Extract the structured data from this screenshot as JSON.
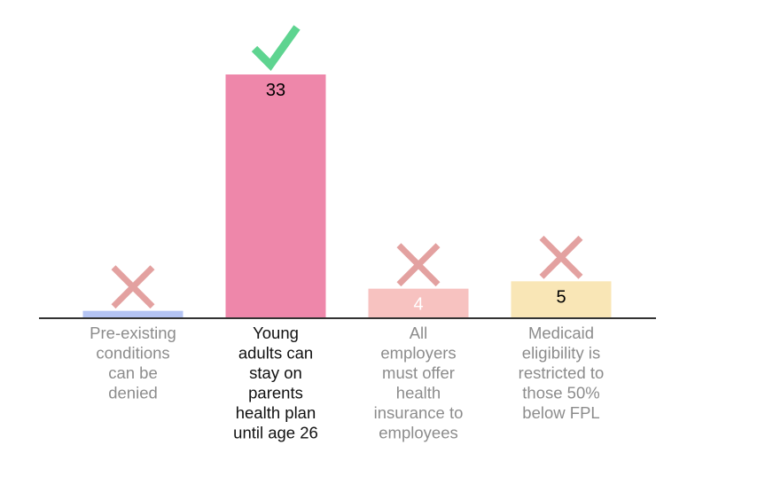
{
  "chart_data": {
    "type": "bar",
    "title": "",
    "xlabel": "",
    "ylabel": "",
    "grid": false,
    "ylim": [
      0,
      33
    ],
    "categories": [
      "Pre-existing conditions can be denied",
      "Young adults can stay on parents health plan until age 26",
      "All employers must offer health insurance to employees",
      "Medicaid eligibility is restricted to those 50% below FPL"
    ],
    "category_label_lines": [
      [
        "Pre-existing",
        "conditions",
        "can be",
        "denied"
      ],
      [
        "Young",
        "adults can",
        "stay on",
        "parents",
        "health plan",
        "until age 26"
      ],
      [
        "All",
        "employers",
        "must offer",
        "health",
        "insurance to",
        "employees"
      ],
      [
        "Medicaid",
        "eligibility is",
        "restricted to",
        "those 50%",
        "below FPL"
      ]
    ],
    "values": [
      1,
      33,
      4,
      5
    ],
    "value_labels": [
      "",
      "33",
      "4",
      "5"
    ],
    "colors": [
      "#b4c4f4",
      "#ee87aa",
      "#f7c2c0",
      "#f9e6b6"
    ],
    "value_label_colors": [
      "#000000",
      "#000000",
      "#ffffff",
      "#000000"
    ],
    "label_colors": [
      "#8c8c8c",
      "#111111",
      "#8c8c8c",
      "#8c8c8c"
    ],
    "markers": [
      "cross-icon",
      "check-icon",
      "cross-icon",
      "cross-icon"
    ],
    "marker_colors": {
      "cross-icon": "#e3a1a0",
      "check-icon": "#5ed490"
    },
    "axis_color": "#333333"
  }
}
